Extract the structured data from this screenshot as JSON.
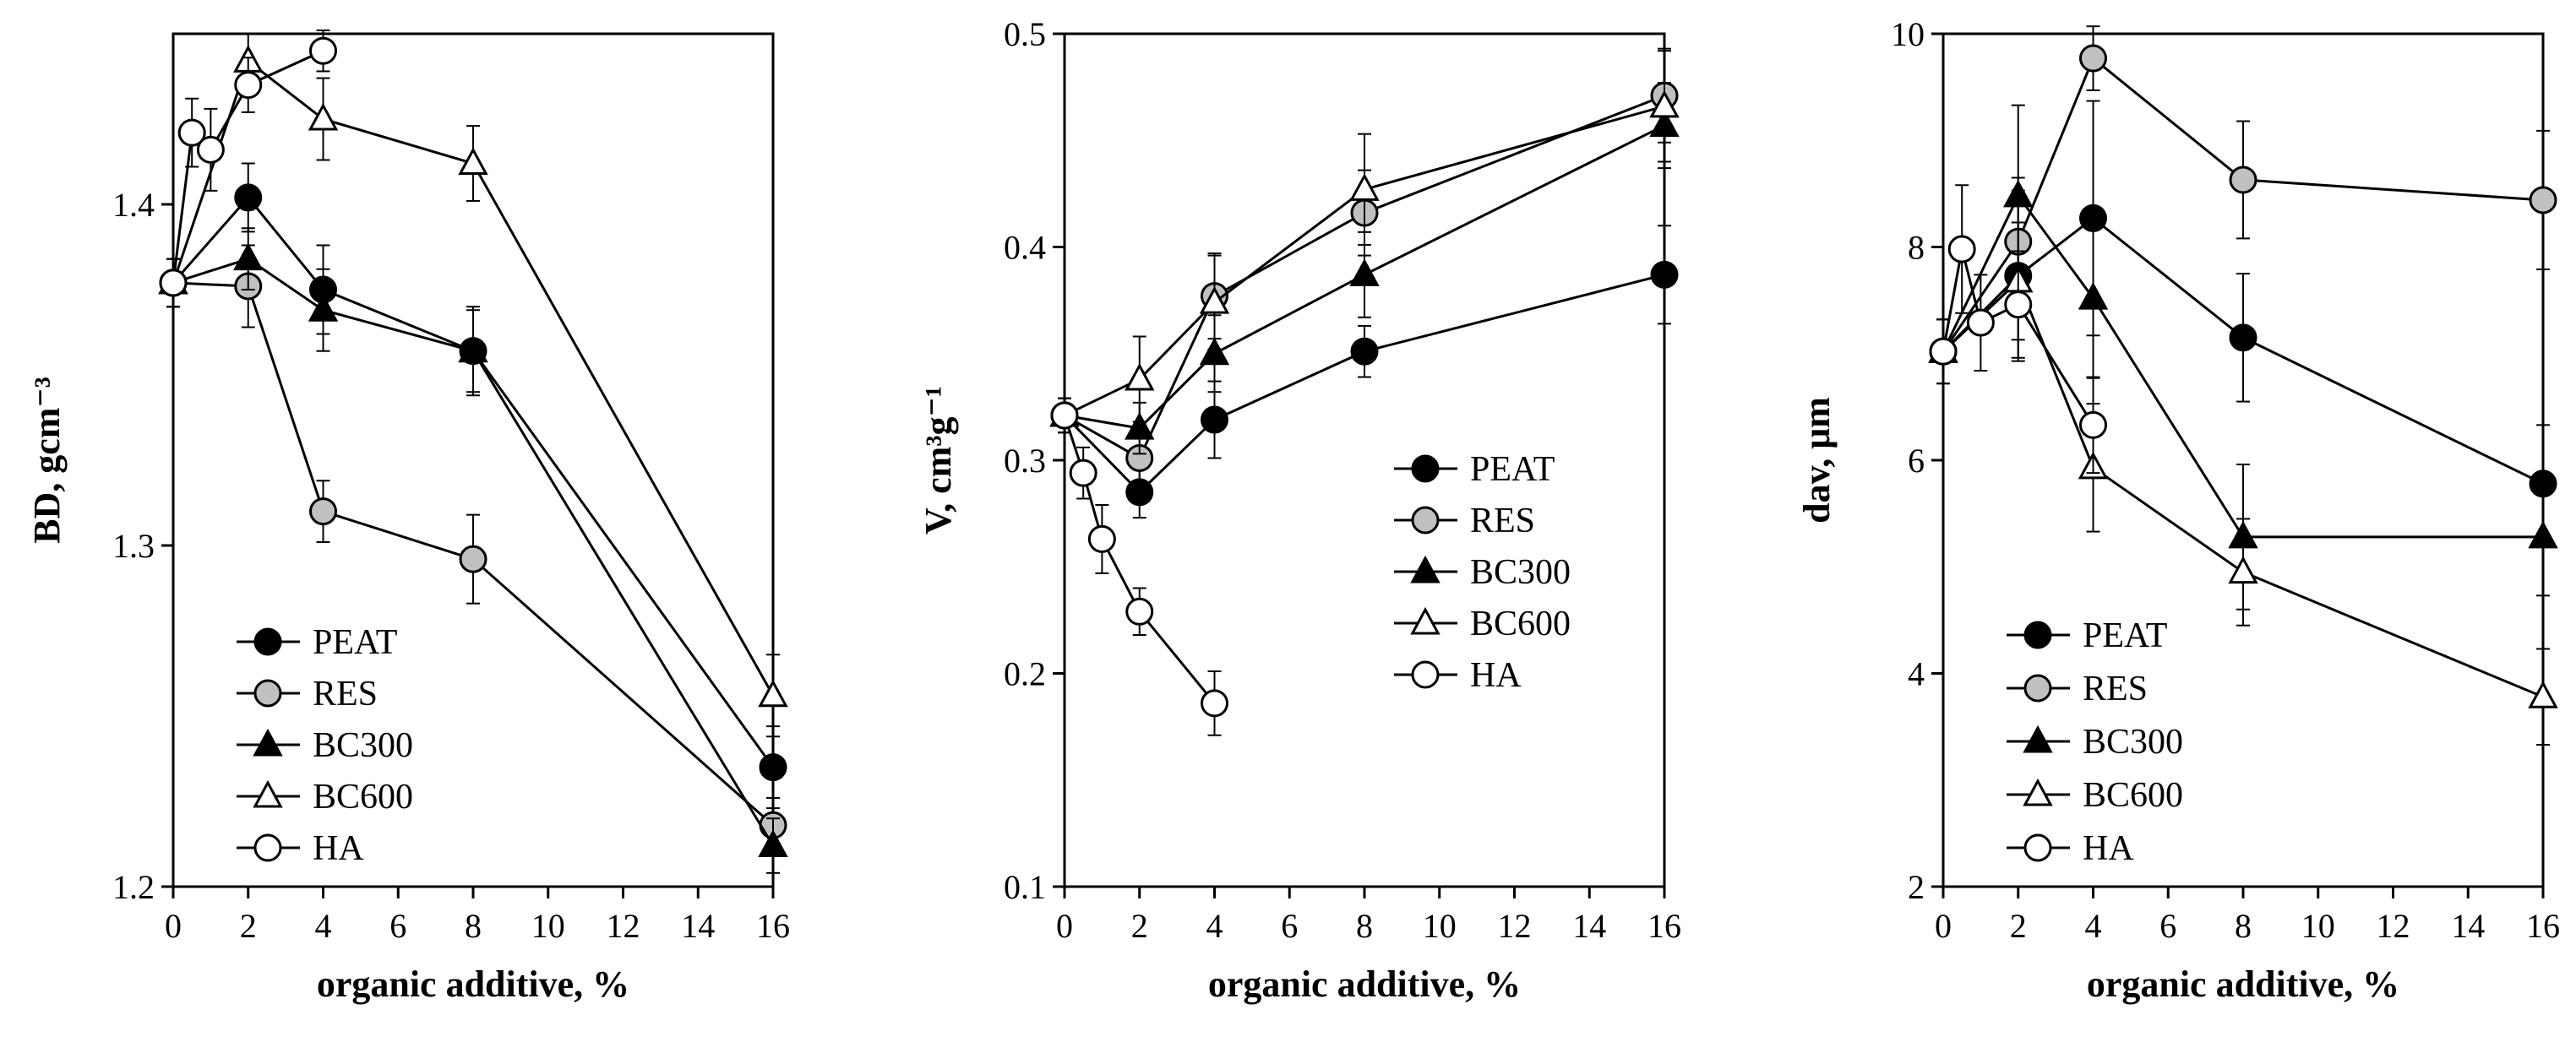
{
  "chart_data": [
    {
      "type": "line",
      "xlabel": "organic additive, %",
      "ylabel": "BD, gcm⁻³",
      "xlim": [
        0,
        16
      ],
      "ylim": [
        1.2,
        1.45
      ],
      "xticks": [
        0,
        2,
        4,
        6,
        8,
        10,
        12,
        14,
        16
      ],
      "xtick_labels": [
        "0",
        "2",
        "4",
        "6",
        "8",
        "10",
        "12",
        "14",
        "16"
      ],
      "yticks": [
        1.2,
        1.3,
        1.4
      ],
      "ytick_labels": [
        "1.2",
        "1.3",
        "1.4"
      ],
      "legend_position": "bottom-left",
      "series": [
        {
          "name": "PEAT",
          "x": [
            0,
            2,
            4,
            8,
            16
          ],
          "y": [
            1.377,
            1.402,
            1.375,
            1.357,
            1.235
          ],
          "err": [
            0.007,
            0.01,
            0.013,
            0.013,
            0.012
          ]
        },
        {
          "name": "RES",
          "x": [
            0,
            2,
            4,
            8,
            16
          ],
          "y": [
            1.377,
            1.376,
            1.31,
            1.296,
            1.218
          ],
          "err": [
            0.007,
            0.012,
            0.009,
            0.013,
            0.008
          ]
        },
        {
          "name": "BC300",
          "x": [
            0,
            2,
            4,
            8,
            16
          ],
          "y": [
            1.377,
            1.384,
            1.369,
            1.357,
            1.212
          ],
          "err": [
            0.007,
            0.009,
            0.012,
            0.012,
            0.008
          ]
        },
        {
          "name": "BC600",
          "x": [
            0,
            2,
            4,
            8,
            16
          ],
          "y": [
            1.377,
            1.442,
            1.425,
            1.412,
            1.256
          ],
          "err": [
            0.007,
            0.008,
            0.012,
            0.011,
            0.012
          ]
        },
        {
          "name": "HA",
          "x": [
            0,
            0.5,
            1,
            2,
            4
          ],
          "y": [
            1.377,
            1.421,
            1.416,
            1.435,
            1.445
          ],
          "err": [
            0.007,
            0.01,
            0.012,
            0.008,
            0.006
          ]
        }
      ]
    },
    {
      "type": "line",
      "xlabel": "organic additive, %",
      "ylabel": "V, cm³g⁻¹",
      "xlim": [
        0,
        16
      ],
      "ylim": [
        0.1,
        0.5
      ],
      "xticks": [
        0,
        2,
        4,
        6,
        8,
        10,
        12,
        14,
        16
      ],
      "xtick_labels": [
        "0",
        "2",
        "4",
        "6",
        "8",
        "10",
        "12",
        "14",
        "16"
      ],
      "yticks": [
        0.1,
        0.2,
        0.3,
        0.4,
        0.5
      ],
      "ytick_labels": [
        "0.1",
        "0.2",
        "0.3",
        "0.4",
        "0.5"
      ],
      "legend_position": "center-right",
      "series": [
        {
          "name": "PEAT",
          "x": [
            0,
            2,
            4,
            8,
            16
          ],
          "y": [
            0.321,
            0.285,
            0.319,
            0.351,
            0.387
          ],
          "err": [
            0.008,
            0.012,
            0.018,
            0.012,
            0.023
          ]
        },
        {
          "name": "RES",
          "x": [
            0,
            2,
            4,
            8,
            16
          ],
          "y": [
            0.321,
            0.301,
            0.377,
            0.416,
            0.471
          ],
          "err": [
            0.008,
            0.012,
            0.02,
            0.02,
            0.022
          ]
        },
        {
          "name": "BC300",
          "x": [
            0,
            2,
            4,
            8,
            16
          ],
          "y": [
            0.321,
            0.315,
            0.35,
            0.387,
            0.457
          ],
          "err": [
            0.008,
            0.012,
            0.018,
            0.02,
            0.02
          ]
        },
        {
          "name": "BC600",
          "x": [
            0,
            2,
            4,
            8,
            16
          ],
          "y": [
            0.321,
            0.338,
            0.374,
            0.427,
            0.466
          ],
          "err": [
            0.008,
            0.02,
            0.022,
            0.026,
            0.026
          ]
        },
        {
          "name": "HA",
          "x": [
            0,
            0.5,
            1,
            2,
            4
          ],
          "y": [
            0.321,
            0.294,
            0.263,
            0.229,
            0.186
          ],
          "err": [
            0.008,
            0.012,
            0.016,
            0.011,
            0.015
          ]
        }
      ]
    },
    {
      "type": "line",
      "xlabel": "organic additive, %",
      "ylabel": "dav, μm",
      "xlim": [
        0,
        16
      ],
      "ylim": [
        2,
        10
      ],
      "xticks": [
        0,
        2,
        4,
        6,
        8,
        10,
        12,
        14,
        16
      ],
      "xtick_labels": [
        "0",
        "2",
        "4",
        "6",
        "8",
        "10",
        "12",
        "14",
        "16"
      ],
      "yticks": [
        2,
        4,
        6,
        8,
        10
      ],
      "ytick_labels": [
        "2",
        "4",
        "6",
        "8",
        "10"
      ],
      "legend_position": "bottom-left",
      "series": [
        {
          "name": "PEAT",
          "x": [
            0,
            2,
            4,
            8,
            16
          ],
          "y": [
            7.02,
            7.73,
            8.27,
            7.15,
            5.78
          ],
          "err": [
            0.3,
            0.8,
            1.1,
            0.6,
            0.55
          ]
        },
        {
          "name": "RES",
          "x": [
            0,
            2,
            4,
            8,
            16
          ],
          "y": [
            7.02,
            8.05,
            9.77,
            8.63,
            8.44
          ],
          "err": [
            0.3,
            0.6,
            0.3,
            0.55,
            0.65
          ]
        },
        {
          "name": "BC300",
          "x": [
            0,
            2,
            4,
            8,
            16
          ],
          "y": [
            7.02,
            8.48,
            7.52,
            5.28,
            5.28
          ],
          "err": [
            0.3,
            0.85,
            0.75,
            0.68,
            0.55
          ]
        },
        {
          "name": "BC600",
          "x": [
            0,
            2,
            4,
            8,
            16
          ],
          "y": [
            7.02,
            7.68,
            5.93,
            4.95,
            3.78
          ],
          "err": [
            0.3,
            0.55,
            0.6,
            0.5,
            0.45
          ]
        },
        {
          "name": "HA",
          "x": [
            0,
            0.5,
            1,
            2,
            4
          ],
          "y": [
            7.02,
            7.98,
            7.29,
            7.46,
            6.33
          ],
          "err": [
            0.3,
            0.6,
            0.45,
            0.5,
            0.45
          ]
        }
      ]
    }
  ],
  "styles": {
    "PEAT": {
      "marker": "circle",
      "fill": "#000000"
    },
    "RES": {
      "marker": "circle",
      "fill": "#c0c0c0"
    },
    "BC300": {
      "marker": "triangle",
      "fill": "#000000"
    },
    "BC600": {
      "marker": "triangle",
      "fill": "#ffffff"
    },
    "HA": {
      "marker": "circle",
      "fill": "#ffffff"
    }
  }
}
